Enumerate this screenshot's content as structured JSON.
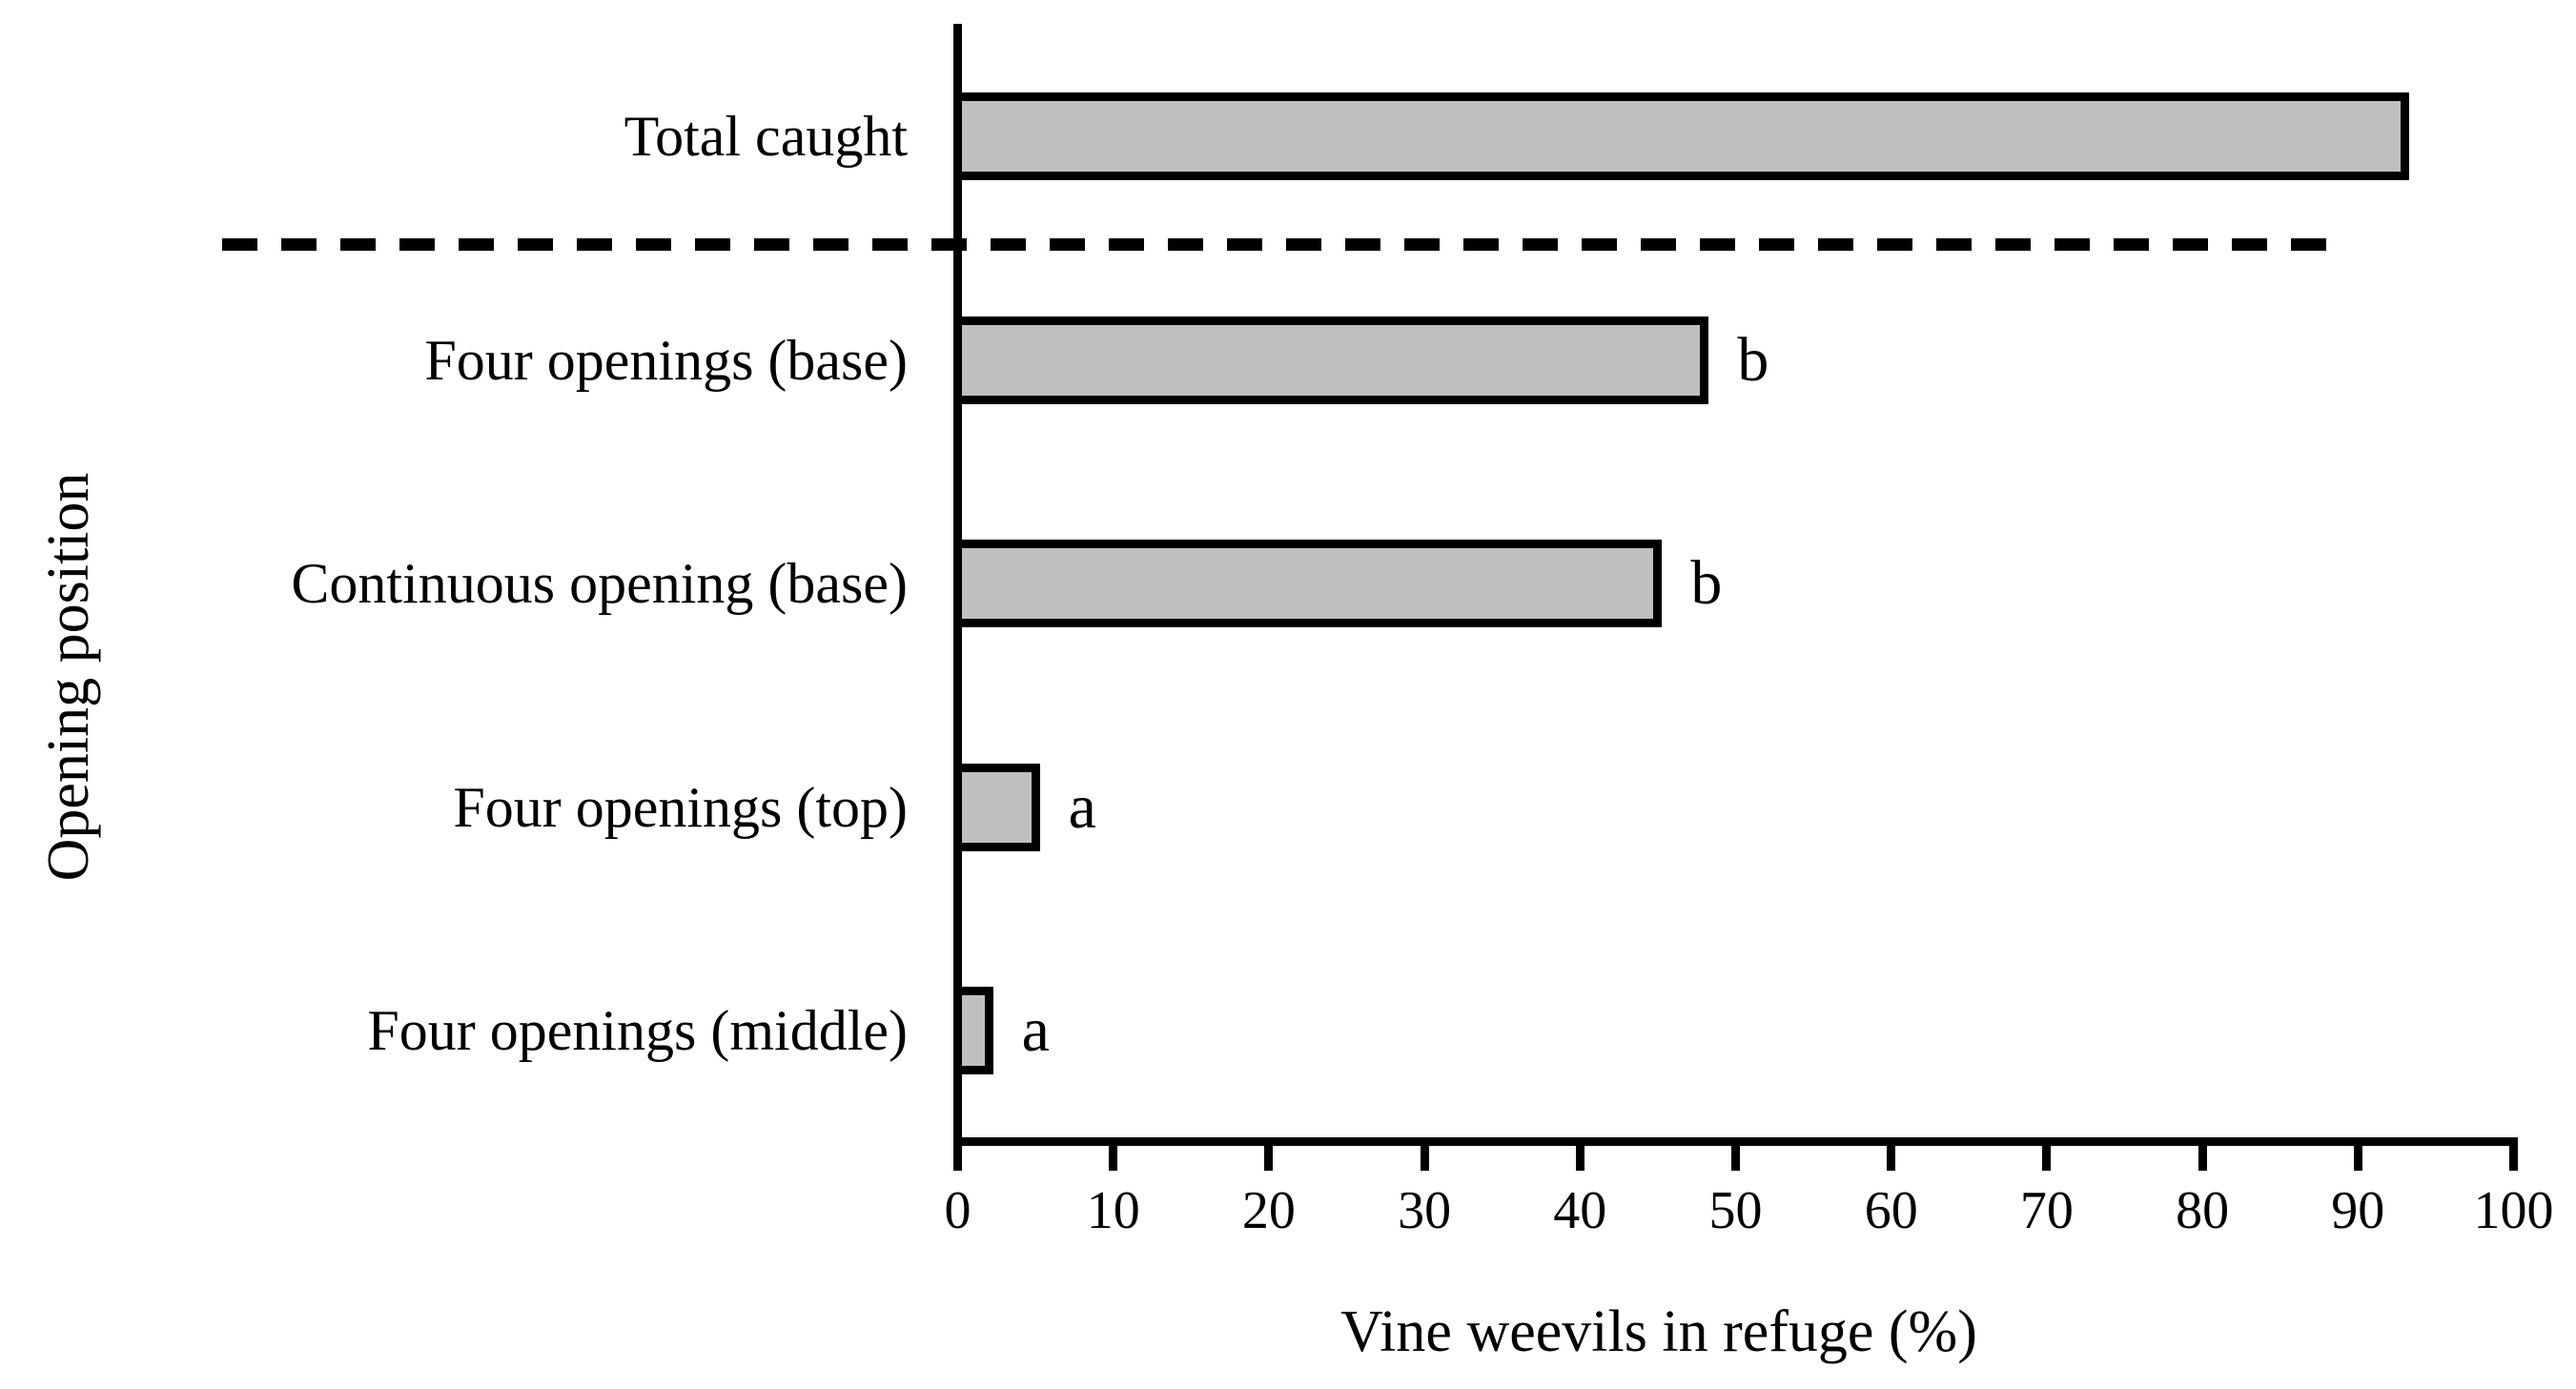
{
  "chart_data": {
    "type": "bar",
    "orientation": "horizontal",
    "title": "",
    "xlabel": "Vine weevils in refuge (%)",
    "ylabel": "Opening position",
    "xlim": [
      0,
      100
    ],
    "x_ticks": [
      0,
      10,
      20,
      30,
      40,
      50,
      60,
      70,
      80,
      90,
      100
    ],
    "categories": [
      "Total caught",
      "Four openings (base)",
      "Continuous opening (base)",
      "Four openings (top)",
      "Four openings (middle)"
    ],
    "values": [
      93,
      48,
      45,
      5,
      2
    ],
    "sig_labels": [
      "",
      "b",
      "b",
      "a",
      "a"
    ],
    "separator": {
      "style": "dashed",
      "position": "between Total caught bar and treatment bars",
      "color": "#000000"
    },
    "grid": false,
    "legend": false,
    "bar_fill_color": "#bfbfbf",
    "bar_border_color": "#000000",
    "axis_color": "#000000",
    "text_color": "#000000"
  }
}
